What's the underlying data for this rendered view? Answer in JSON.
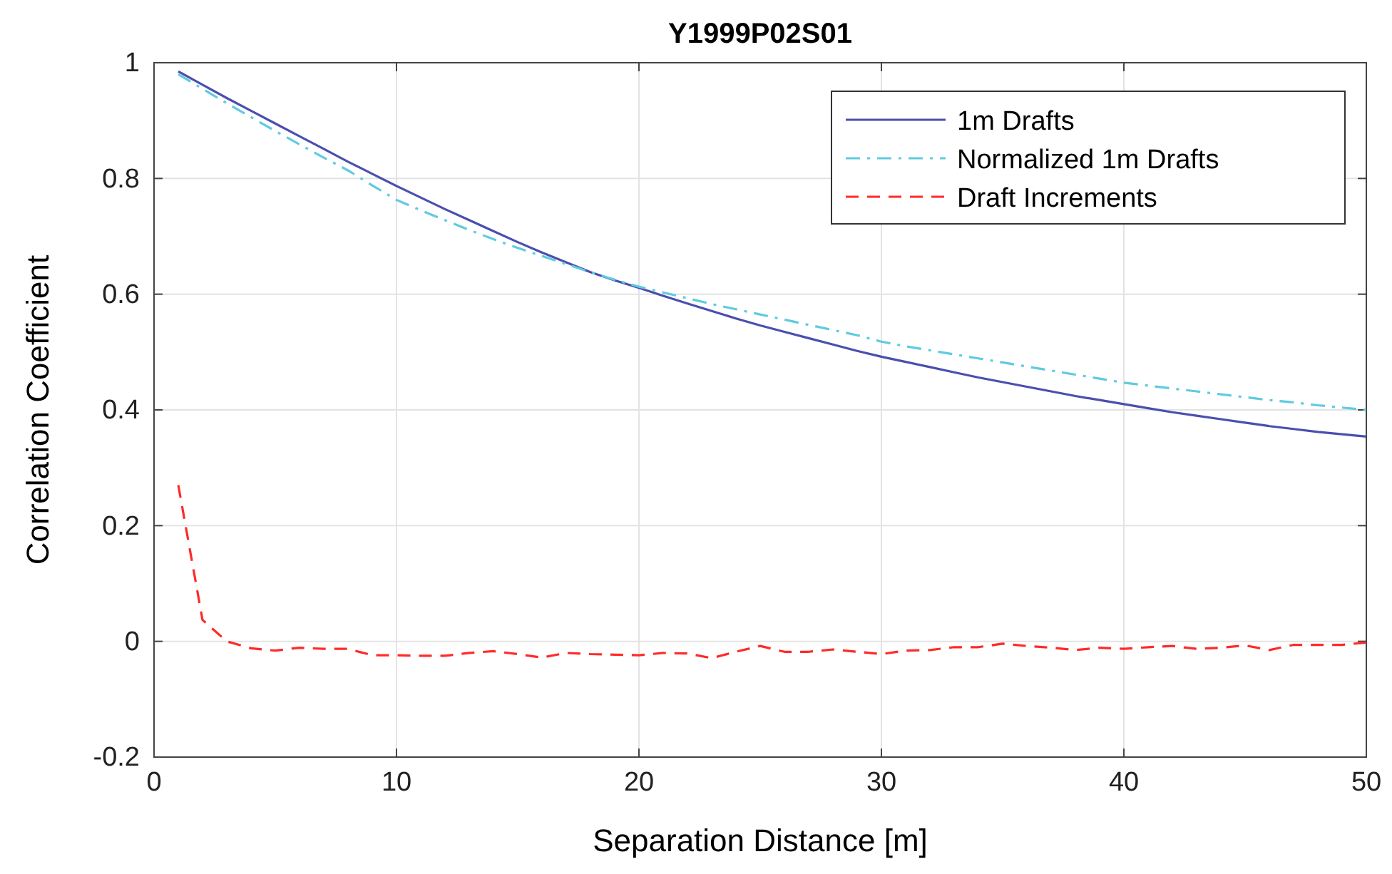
{
  "chart_data": {
    "type": "line",
    "title": "Y1999P02S01",
    "xlabel": "Separation Distance [m]",
    "ylabel": "Correlation Coefficient",
    "xlim": [
      0,
      50
    ],
    "xticks": [
      0,
      10,
      20,
      30,
      40,
      50
    ],
    "ylim": [
      -0.2,
      1
    ],
    "yticks": [
      -0.2,
      0,
      0.2,
      0.4,
      0.6,
      0.8,
      1
    ],
    "grid": true,
    "legend": "top right",
    "x": [
      1,
      2,
      3,
      4,
      5,
      6,
      7,
      8,
      9,
      10,
      11,
      12,
      13,
      14,
      15,
      16,
      17,
      18,
      19,
      20,
      21,
      22,
      23,
      24,
      25,
      26,
      27,
      28,
      29,
      30,
      31,
      32,
      33,
      34,
      35,
      36,
      37,
      38,
      39,
      40,
      41,
      42,
      43,
      44,
      45,
      46,
      47,
      48,
      49,
      50
    ],
    "series": [
      {
        "name": "1m Drafts",
        "color": "#4a4fae",
        "line_style": "solid",
        "values": [
          0.985,
          0.962,
          0.939,
          0.917,
          0.895,
          0.873,
          0.851,
          0.829,
          0.808,
          0.787,
          0.767,
          0.747,
          0.728,
          0.709,
          0.69,
          0.672,
          0.655,
          0.638,
          0.624,
          0.611,
          0.597,
          0.584,
          0.571,
          0.558,
          0.546,
          0.535,
          0.524,
          0.513,
          0.502,
          0.492,
          0.483,
          0.474,
          0.465,
          0.456,
          0.448,
          0.44,
          0.432,
          0.424,
          0.417,
          0.41,
          0.403,
          0.396,
          0.39,
          0.384,
          0.378,
          0.372,
          0.367,
          0.362,
          0.358,
          0.354
        ]
      },
      {
        "name": "Normalized 1m Drafts",
        "color": "#5fcbe0",
        "line_style": "dashdot",
        "values": [
          0.98,
          0.955,
          0.93,
          0.906,
          0.882,
          0.859,
          0.836,
          0.814,
          0.788,
          0.763,
          0.745,
          0.728,
          0.711,
          0.695,
          0.68,
          0.666,
          0.652,
          0.638,
          0.625,
          0.613,
          0.603,
          0.593,
          0.583,
          0.574,
          0.565,
          0.556,
          0.547,
          0.538,
          0.529,
          0.518,
          0.51,
          0.503,
          0.496,
          0.489,
          0.482,
          0.475,
          0.468,
          0.461,
          0.454,
          0.447,
          0.442,
          0.437,
          0.432,
          0.427,
          0.422,
          0.417,
          0.413,
          0.408,
          0.404,
          0.4
        ]
      },
      {
        "name": "Draft Increments",
        "color": "#ff2a2a",
        "line_style": "dashed",
        "values": [
          0.27,
          0.037,
          0.0,
          -0.012,
          -0.016,
          -0.011,
          -0.013,
          -0.013,
          -0.024,
          -0.024,
          -0.025,
          -0.025,
          -0.02,
          -0.017,
          -0.022,
          -0.028,
          -0.02,
          -0.022,
          -0.023,
          -0.024,
          -0.02,
          -0.021,
          -0.029,
          -0.018,
          -0.008,
          -0.018,
          -0.018,
          -0.014,
          -0.018,
          -0.022,
          -0.016,
          -0.015,
          -0.01,
          -0.01,
          -0.004,
          -0.008,
          -0.011,
          -0.015,
          -0.011,
          -0.013,
          -0.01,
          -0.008,
          -0.013,
          -0.011,
          -0.007,
          -0.015,
          -0.006,
          -0.006,
          -0.006,
          -0.002
        ]
      }
    ]
  }
}
